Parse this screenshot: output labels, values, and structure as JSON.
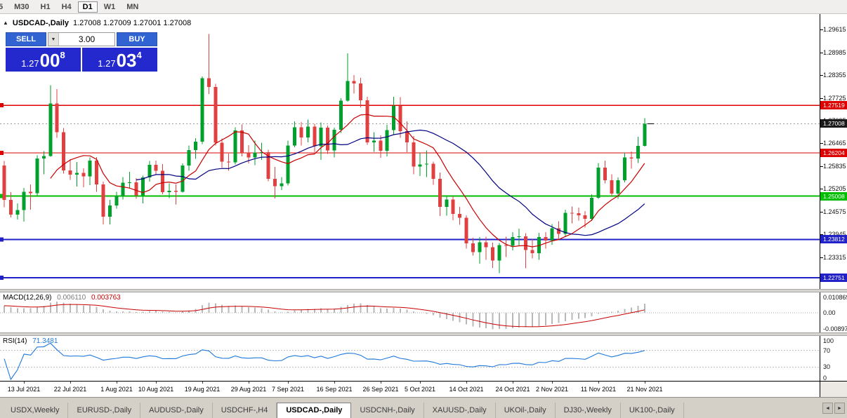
{
  "colors": {
    "bull": "#00A02C",
    "bear": "#E04040",
    "panel_blue": "#3163D2",
    "price_bg": "#2429CE",
    "line_red": "#DE0000",
    "line_green": "#00BE00",
    "line_blue": "#2121C8"
  },
  "icons": {
    "collapse": "▲",
    "dropdown": "▼",
    "tab_scroll_left": "◄",
    "tab_scroll_right": "►"
  },
  "toolbar": {
    "periods": [
      "5",
      "M30",
      "H1",
      "H4",
      "D1",
      "W1",
      "MN"
    ],
    "active": "D1"
  },
  "title": {
    "symbol": "USDCAD-,Daily",
    "ohlc": "1.27008 1.27009 1.27001 1.27008"
  },
  "trade": {
    "sell_label": "SELL",
    "buy_label": "BUY",
    "volume": "3.00",
    "sell_price": {
      "prefix": "1.27",
      "big": "00",
      "sup": "8"
    },
    "buy_price": {
      "prefix": "1.27",
      "big": "03",
      "sup": "4"
    }
  },
  "chart_data": {
    "type": "candlestick",
    "symbol": "USDCAD-",
    "timeframe": "Daily",
    "price_top": 1.30042,
    "price_bottom": 1.22442,
    "y_ticks": [
      {
        "value": 1.29615,
        "label": "1.29615"
      },
      {
        "value": 1.28985,
        "label": "1.28985"
      },
      {
        "value": 1.28355,
        "label": "1.28355"
      },
      {
        "value": 1.27725,
        "label": "1.27725"
      },
      {
        "value": 1.27095,
        "label": "1.27095"
      },
      {
        "value": 1.26465,
        "label": "1.26465"
      },
      {
        "value": 1.25835,
        "label": "1.25835"
      },
      {
        "value": 1.25205,
        "label": "1.25205"
      },
      {
        "value": 1.24575,
        "label": "1.24575"
      },
      {
        "value": 1.23945,
        "label": "1.23945"
      },
      {
        "value": 1.23315,
        "label": "1.23315"
      }
    ],
    "price_lines": [
      {
        "value": 1.27519,
        "label": "1.27519",
        "color": "#DE0000",
        "width": 1.4
      },
      {
        "value": 1.26204,
        "label": "1.26204",
        "color": "#DE0000",
        "width": 1.4
      },
      {
        "value": 1.25008,
        "label": "1.25008",
        "color": "#00BE00",
        "width": 2
      },
      {
        "value": 1.23812,
        "label": "1.23812",
        "color": "#2121C8",
        "width": 2
      },
      {
        "value": 1.22751,
        "label": "1.22751",
        "color": "#2121C8",
        "width": 2
      }
    ],
    "current_price": {
      "value": 1.27008,
      "label": "1.27008",
      "color": "#1A1A1A"
    },
    "moving_averages": [
      {
        "period": 8,
        "color": "#C80000"
      },
      {
        "period": 21,
        "color": "#000082"
      }
    ],
    "x_labels": [
      {
        "text": "13 Jul 2021",
        "bar": 3
      },
      {
        "text": "22 Jul 2021",
        "bar": 10
      },
      {
        "text": "1 Aug 2021",
        "bar": 17
      },
      {
        "text": "10 Aug 2021",
        "bar": 23
      },
      {
        "text": "19 Aug 2021",
        "bar": 30
      },
      {
        "text": "29 Aug 2021",
        "bar": 37
      },
      {
        "text": "7 Sep 2021",
        "bar": 43
      },
      {
        "text": "16 Sep 2021",
        "bar": 50
      },
      {
        "text": "26 Sep 2021",
        "bar": 57
      },
      {
        "text": "5 Oct 2021",
        "bar": 63
      },
      {
        "text": "14 Oct 2021",
        "bar": 70
      },
      {
        "text": "24 Oct 2021",
        "bar": 77
      },
      {
        "text": "2 Nov 2021",
        "bar": 83
      },
      {
        "text": "11 Nov 2021",
        "bar": 90
      },
      {
        "text": "21 Nov 2021",
        "bar": 97
      }
    ],
    "candles": [
      [
        1.2585,
        1.2598,
        1.247,
        1.249
      ],
      [
        1.249,
        1.2512,
        1.2442,
        1.245
      ],
      [
        1.245,
        1.2481,
        1.2436,
        1.2462
      ],
      [
        1.2462,
        1.2523,
        1.243,
        1.2513
      ],
      [
        1.2513,
        1.2533,
        1.2463,
        1.2509
      ],
      [
        1.2509,
        1.2614,
        1.2501,
        1.2605
      ],
      [
        1.2605,
        1.2625,
        1.2561,
        1.2612
      ],
      [
        1.2612,
        1.2807,
        1.261,
        1.2757
      ],
      [
        1.2757,
        1.2797,
        1.2662,
        1.2678
      ],
      [
        1.2678,
        1.2689,
        1.2563,
        1.2572
      ],
      [
        1.2572,
        1.2603,
        1.2546,
        1.256
      ],
      [
        1.256,
        1.2595,
        1.2527,
        1.2565
      ],
      [
        1.2565,
        1.2578,
        1.2525,
        1.2555
      ],
      [
        1.2555,
        1.2608,
        1.2531,
        1.2599
      ],
      [
        1.2599,
        1.2609,
        1.2513,
        1.2533
      ],
      [
        1.2533,
        1.2541,
        1.2423,
        1.2444
      ],
      [
        1.2444,
        1.249,
        1.2423,
        1.2475
      ],
      [
        1.2475,
        1.2513,
        1.2466,
        1.2501
      ],
      [
        1.2501,
        1.2553,
        1.2491,
        1.2538
      ],
      [
        1.2538,
        1.2568,
        1.2521,
        1.2539
      ],
      [
        1.2539,
        1.2551,
        1.2493,
        1.2503
      ],
      [
        1.2503,
        1.2557,
        1.2481,
        1.2552
      ],
      [
        1.2552,
        1.2598,
        1.2541,
        1.2587
      ],
      [
        1.2587,
        1.2599,
        1.2559,
        1.2571
      ],
      [
        1.2571,
        1.2589,
        1.2506,
        1.2512
      ],
      [
        1.2512,
        1.2536,
        1.2495,
        1.2516
      ],
      [
        1.2516,
        1.2533,
        1.2478,
        1.2513
      ],
      [
        1.2513,
        1.2591,
        1.2511,
        1.2585
      ],
      [
        1.2585,
        1.2641,
        1.2571,
        1.2628
      ],
      [
        1.2628,
        1.2661,
        1.2604,
        1.2651
      ],
      [
        1.2651,
        1.2832,
        1.2645,
        1.2827
      ],
      [
        1.2827,
        1.2949,
        1.2783,
        1.2803
      ],
      [
        1.2803,
        1.2811,
        1.2641,
        1.2648
      ],
      [
        1.2648,
        1.266,
        1.258,
        1.2596
      ],
      [
        1.2596,
        1.2618,
        1.2571,
        1.2594
      ],
      [
        1.2594,
        1.2691,
        1.2588,
        1.2682
      ],
      [
        1.2682,
        1.2699,
        1.2611,
        1.262
      ],
      [
        1.262,
        1.2642,
        1.2591,
        1.2608
      ],
      [
        1.2608,
        1.2654,
        1.2586,
        1.2621
      ],
      [
        1.2621,
        1.2648,
        1.2601,
        1.2622
      ],
      [
        1.2622,
        1.2629,
        1.2542,
        1.2549
      ],
      [
        1.2549,
        1.2582,
        1.2494,
        1.2528
      ],
      [
        1.2528,
        1.2553,
        1.2518,
        1.2536
      ],
      [
        1.2536,
        1.2654,
        1.253,
        1.2641
      ],
      [
        1.2641,
        1.2708,
        1.2636,
        1.2691
      ],
      [
        1.2691,
        1.2706,
        1.2641,
        1.2663
      ],
      [
        1.2663,
        1.2712,
        1.2649,
        1.2693
      ],
      [
        1.2693,
        1.2701,
        1.2622,
        1.2639
      ],
      [
        1.2639,
        1.2705,
        1.2601,
        1.269
      ],
      [
        1.269,
        1.2696,
        1.2617,
        1.2627
      ],
      [
        1.2627,
        1.269,
        1.2608,
        1.2684
      ],
      [
        1.2684,
        1.2772,
        1.2676,
        1.2765
      ],
      [
        1.2765,
        1.2896,
        1.2762,
        1.2819
      ],
      [
        1.2819,
        1.2836,
        1.2784,
        1.2812
      ],
      [
        1.2812,
        1.2828,
        1.2746,
        1.2766
      ],
      [
        1.2766,
        1.2775,
        1.2643,
        1.2649
      ],
      [
        1.2649,
        1.2678,
        1.2623,
        1.2654
      ],
      [
        1.2654,
        1.2669,
        1.2607,
        1.2626
      ],
      [
        1.2626,
        1.2698,
        1.2611,
        1.2683
      ],
      [
        1.2683,
        1.2775,
        1.2671,
        1.275
      ],
      [
        1.275,
        1.2774,
        1.2662,
        1.268
      ],
      [
        1.268,
        1.2708,
        1.2622,
        1.2649
      ],
      [
        1.2649,
        1.2667,
        1.2561,
        1.2583
      ],
      [
        1.2583,
        1.262,
        1.2556,
        1.2588
      ],
      [
        1.2588,
        1.2627,
        1.2553,
        1.259
      ],
      [
        1.259,
        1.2596,
        1.2532,
        1.2549
      ],
      [
        1.2549,
        1.2566,
        1.2446,
        1.2471
      ],
      [
        1.2471,
        1.2502,
        1.2447,
        1.2491
      ],
      [
        1.2491,
        1.25,
        1.2434,
        1.2452
      ],
      [
        1.2452,
        1.2471,
        1.2422,
        1.2441
      ],
      [
        1.2441,
        1.2448,
        1.2356,
        1.237
      ],
      [
        1.237,
        1.2386,
        1.2336,
        1.2346
      ],
      [
        1.2346,
        1.2388,
        1.2314,
        1.2373
      ],
      [
        1.2373,
        1.2389,
        1.2325,
        1.236
      ],
      [
        1.236,
        1.2372,
        1.2302,
        1.2323
      ],
      [
        1.2323,
        1.2371,
        1.2288,
        1.2365
      ],
      [
        1.2365,
        1.2389,
        1.2332,
        1.2363
      ],
      [
        1.2363,
        1.2401,
        1.2351,
        1.2388
      ],
      [
        1.2388,
        1.2411,
        1.2364,
        1.239
      ],
      [
        1.239,
        1.2398,
        1.2301,
        1.2352
      ],
      [
        1.2352,
        1.2382,
        1.2329,
        1.2343
      ],
      [
        1.2343,
        1.2399,
        1.2325,
        1.2388
      ],
      [
        1.2388,
        1.2401,
        1.2356,
        1.2378
      ],
      [
        1.2378,
        1.2424,
        1.2366,
        1.2412
      ],
      [
        1.2412,
        1.2431,
        1.238,
        1.2396
      ],
      [
        1.2396,
        1.2463,
        1.2388,
        1.2455
      ],
      [
        1.2455,
        1.2472,
        1.2425,
        1.2454
      ],
      [
        1.2454,
        1.2469,
        1.2433,
        1.2448
      ],
      [
        1.2448,
        1.2459,
        1.2414,
        1.2438
      ],
      [
        1.2438,
        1.2506,
        1.2432,
        1.2496
      ],
      [
        1.2496,
        1.2592,
        1.2493,
        1.258
      ],
      [
        1.258,
        1.2599,
        1.2536,
        1.2545
      ],
      [
        1.2545,
        1.2561,
        1.2501,
        1.2508
      ],
      [
        1.2508,
        1.2552,
        1.2493,
        1.2545
      ],
      [
        1.2545,
        1.2621,
        1.2539,
        1.2608
      ],
      [
        1.2608,
        1.2624,
        1.2577,
        1.2605
      ],
      [
        1.2605,
        1.2665,
        1.2592,
        1.264
      ],
      [
        1.264,
        1.2716,
        1.2638,
        1.2701
      ]
    ],
    "macd": {
      "name": "MACD(12,26,9)",
      "fast": 12,
      "slow": 26,
      "signal": 9,
      "value_main": "0.006110",
      "value_signal": "0.003763",
      "axis": [
        {
          "value": 0.010869,
          "label": "0.010869"
        },
        {
          "value": 0,
          "label": "0.00"
        },
        {
          "value": -0.008974,
          "label": "-0.008974"
        }
      ],
      "hist_color": "#B8B8B8",
      "signal_color": "#C80000"
    },
    "rsi": {
      "name": "RSI(14)",
      "period": 14,
      "value": "71.3481",
      "axis": [
        {
          "value": 100,
          "label": "100"
        },
        {
          "value": 70,
          "label": "70"
        },
        {
          "value": 30,
          "label": "30"
        },
        {
          "value": 0,
          "label": "0"
        }
      ],
      "levels": [
        70,
        30
      ],
      "color": "#1E78DC"
    }
  },
  "tabs": {
    "items": [
      "USDX,Weekly",
      "EURUSD-,Daily",
      "AUDUSD-,Daily",
      "USDCHF-,H4",
      "USDCAD-,Daily",
      "USDCNH-,Daily",
      "XAUUSD-,Daily",
      "UKOil-,Daily",
      "DJ30-,Weekly",
      "UK100-,Daily"
    ],
    "active": "USDCAD-,Daily"
  }
}
